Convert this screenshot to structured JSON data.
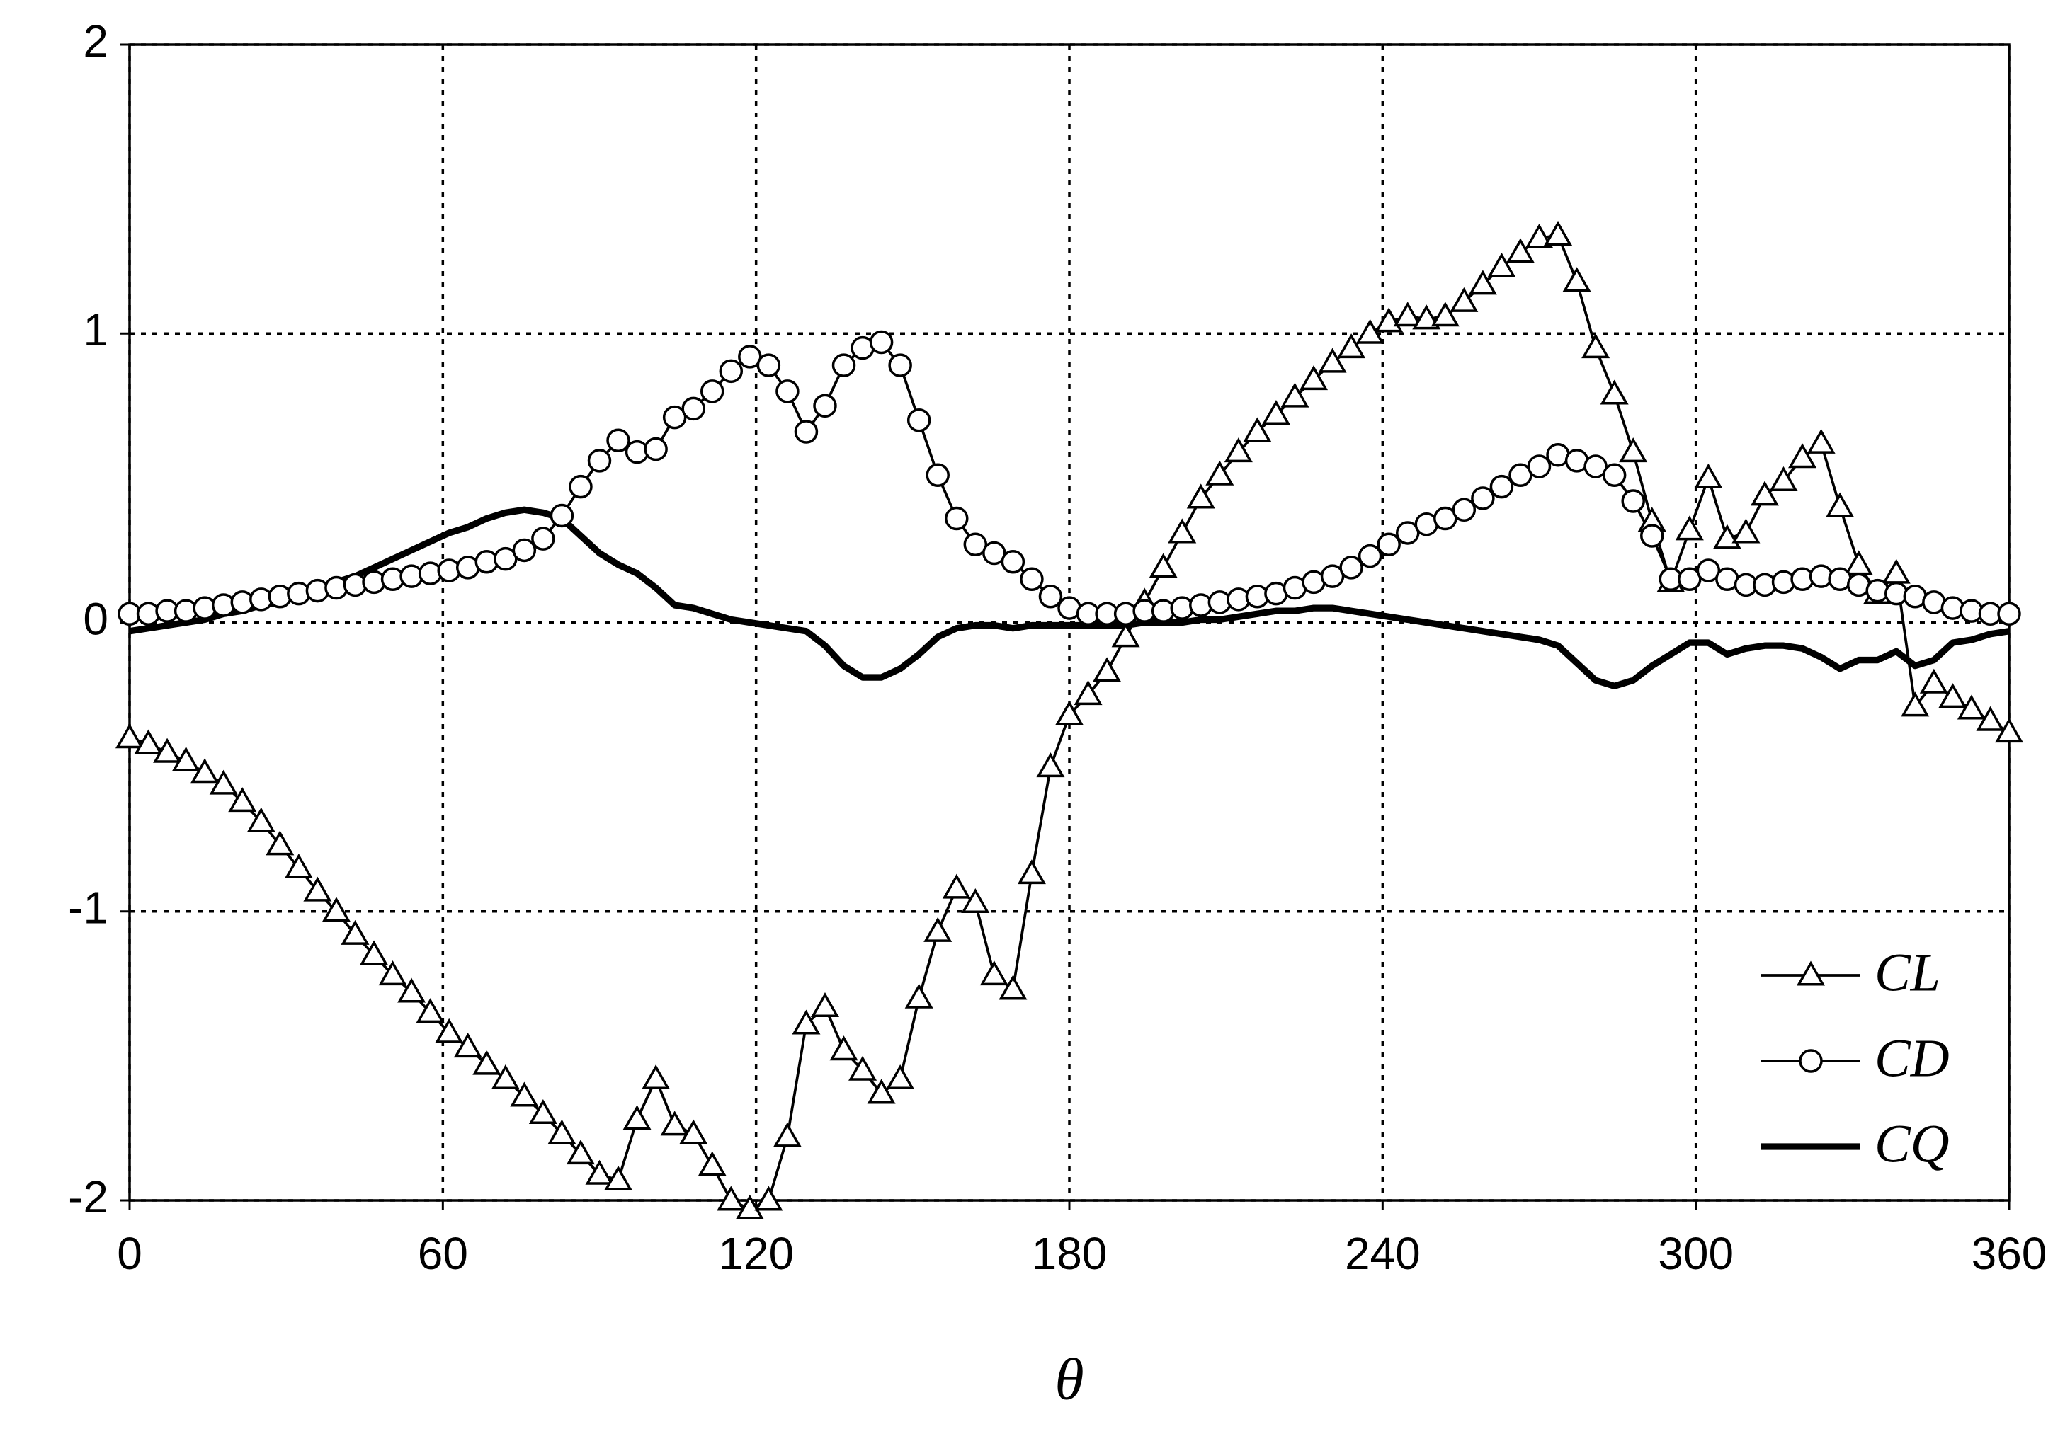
{
  "chart_data": {
    "type": "line",
    "x_label": "θ",
    "x": [
      0,
      3.6,
      7.2,
      10.8,
      14.4,
      18,
      21.6,
      25.2,
      28.8,
      32.4,
      36,
      39.6,
      43.2,
      46.8,
      50.4,
      54,
      57.6,
      61.2,
      64.8,
      68.4,
      72,
      75.6,
      79.2,
      82.8,
      86.4,
      90,
      93.6,
      97.2,
      100.8,
      104.4,
      108,
      111.6,
      115.2,
      118.8,
      122.4,
      126,
      129.6,
      133.2,
      136.8,
      140.4,
      144,
      147.6,
      151.2,
      154.8,
      158.4,
      162,
      165.6,
      169.2,
      172.8,
      176.4,
      180,
      183.6,
      187.2,
      190.8,
      194.4,
      198,
      201.6,
      205.2,
      208.8,
      212.4,
      216,
      219.6,
      223.2,
      226.8,
      230.4,
      234,
      237.6,
      241.2,
      244.8,
      248.4,
      252,
      255.6,
      259.2,
      262.8,
      266.4,
      270,
      273.6,
      277.2,
      280.8,
      284.4,
      288,
      291.6,
      295.2,
      298.8,
      302.4,
      306,
      309.6,
      313.2,
      316.8,
      320.4,
      324,
      327.6,
      331.2,
      334.8,
      338.4,
      342,
      345.6,
      349.2,
      352.8,
      356.4,
      360
    ],
    "series": [
      {
        "name": "CL",
        "color": "#000000",
        "marker": "triangle",
        "line_width": 2,
        "values": [
          -0.4,
          -0.42,
          -0.45,
          -0.48,
          -0.52,
          -0.56,
          -0.62,
          -0.69,
          -0.77,
          -0.85,
          -0.93,
          -1.0,
          -1.08,
          -1.15,
          -1.22,
          -1.28,
          -1.35,
          -1.42,
          -1.47,
          -1.53,
          -1.58,
          -1.64,
          -1.7,
          -1.77,
          -1.84,
          -1.91,
          -1.93,
          -1.72,
          -1.58,
          -1.74,
          -1.77,
          -1.88,
          -2.0,
          -2.03,
          -2.0,
          -1.78,
          -1.39,
          -1.33,
          -1.48,
          -1.55,
          -1.63,
          -1.58,
          -1.3,
          -1.07,
          -0.92,
          -0.97,
          -1.22,
          -1.27,
          -0.87,
          -0.5,
          -0.32,
          -0.25,
          -0.17,
          -0.05,
          0.07,
          0.19,
          0.31,
          0.43,
          0.51,
          0.59,
          0.66,
          0.72,
          0.78,
          0.84,
          0.9,
          0.95,
          1.0,
          1.04,
          1.06,
          1.05,
          1.06,
          1.11,
          1.17,
          1.23,
          1.28,
          1.33,
          1.34,
          1.18,
          0.95,
          0.79,
          0.59,
          0.35,
          0.14,
          0.32,
          0.5,
          0.29,
          0.31,
          0.44,
          0.49,
          0.57,
          0.62,
          0.4,
          0.2,
          0.1,
          0.17,
          -0.29,
          -0.21,
          -0.26,
          -0.3,
          -0.34,
          -0.38
        ]
      },
      {
        "name": "CD",
        "color": "#000000",
        "marker": "circle",
        "line_width": 2,
        "values": [
          0.03,
          0.03,
          0.04,
          0.04,
          0.05,
          0.06,
          0.07,
          0.08,
          0.09,
          0.1,
          0.11,
          0.12,
          0.13,
          0.14,
          0.15,
          0.16,
          0.17,
          0.18,
          0.19,
          0.21,
          0.22,
          0.25,
          0.29,
          0.37,
          0.47,
          0.56,
          0.63,
          0.59,
          0.6,
          0.71,
          0.74,
          0.8,
          0.87,
          0.92,
          0.89,
          0.8,
          0.66,
          0.75,
          0.89,
          0.95,
          0.97,
          0.89,
          0.7,
          0.51,
          0.36,
          0.27,
          0.24,
          0.21,
          0.15,
          0.09,
          0.05,
          0.03,
          0.03,
          0.03,
          0.04,
          0.04,
          0.05,
          0.06,
          0.07,
          0.08,
          0.09,
          0.1,
          0.12,
          0.14,
          0.16,
          0.19,
          0.23,
          0.27,
          0.31,
          0.34,
          0.36,
          0.39,
          0.43,
          0.47,
          0.51,
          0.54,
          0.58,
          0.56,
          0.54,
          0.51,
          0.42,
          0.3,
          0.15,
          0.15,
          0.18,
          0.15,
          0.13,
          0.13,
          0.14,
          0.15,
          0.16,
          0.15,
          0.13,
          0.11,
          0.1,
          0.09,
          0.07,
          0.05,
          0.04,
          0.03,
          0.03
        ]
      },
      {
        "name": "CQ",
        "color": "#000000",
        "marker": null,
        "line_width": 5,
        "values": [
          -0.03,
          -0.02,
          -0.01,
          0.0,
          0.01,
          0.03,
          0.04,
          0.06,
          0.07,
          0.09,
          0.11,
          0.14,
          0.16,
          0.19,
          0.22,
          0.25,
          0.28,
          0.31,
          0.33,
          0.36,
          0.38,
          0.39,
          0.38,
          0.36,
          0.3,
          0.24,
          0.2,
          0.17,
          0.12,
          0.06,
          0.05,
          0.03,
          0.01,
          0.0,
          -0.01,
          -0.02,
          -0.03,
          -0.08,
          -0.15,
          -0.19,
          -0.19,
          -0.16,
          -0.11,
          -0.05,
          -0.02,
          -0.01,
          -0.01,
          -0.02,
          -0.01,
          -0.01,
          -0.01,
          -0.01,
          -0.01,
          -0.01,
          0.0,
          0.0,
          0.0,
          0.01,
          0.01,
          0.02,
          0.03,
          0.04,
          0.04,
          0.05,
          0.05,
          0.04,
          0.03,
          0.02,
          0.01,
          0.0,
          -0.01,
          -0.02,
          -0.03,
          -0.04,
          -0.05,
          -0.06,
          -0.08,
          -0.14,
          -0.2,
          -0.22,
          -0.2,
          -0.15,
          -0.11,
          -0.07,
          -0.07,
          -0.11,
          -0.09,
          -0.08,
          -0.08,
          -0.09,
          -0.12,
          -0.16,
          -0.13,
          -0.13,
          -0.1,
          -0.15,
          -0.13,
          -0.07,
          -0.06,
          -0.04,
          -0.03
        ]
      }
    ],
    "xlim": [
      0,
      360
    ],
    "xticks": [
      0,
      60,
      120,
      180,
      240,
      300,
      360
    ],
    "ylim": [
      -2,
      2
    ],
    "yticks": [
      -2,
      -1,
      0,
      1,
      2
    ],
    "grid": true,
    "legend": "lower right"
  }
}
